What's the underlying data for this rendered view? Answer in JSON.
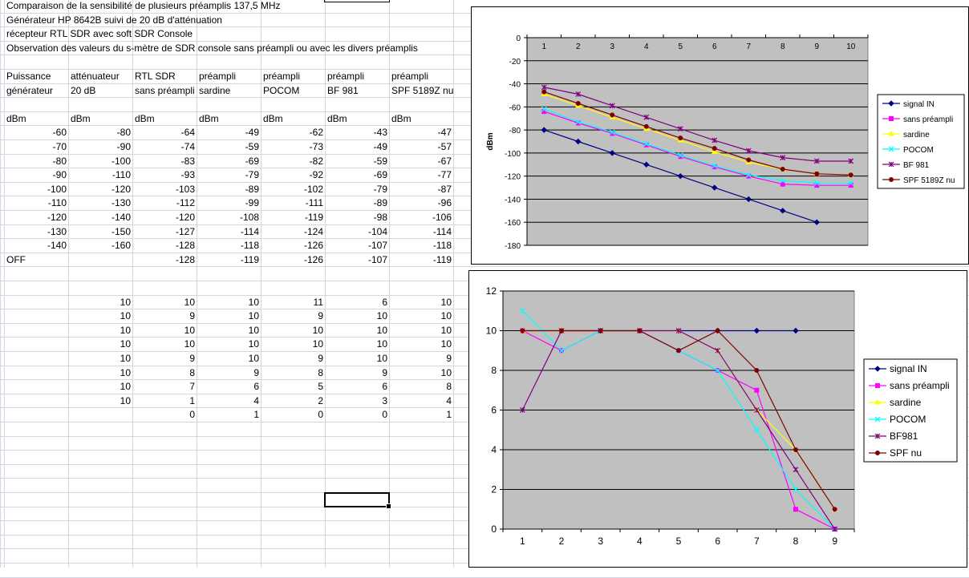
{
  "sheet": {
    "rows": [
      [
        {
          "c": 0,
          "t": "Comparaison de la sensibilité de plusieurs préamplis 137,5 MHz",
          "a": "o"
        }
      ],
      [
        {
          "c": 0,
          "t": "Générateur HP 8642B suivi de 20 dB d'atténuation",
          "a": "o"
        }
      ],
      [
        {
          "c": 0,
          "t": "récepteur RTL SDR avec soft SDR Console",
          "a": "o"
        }
      ],
      [
        {
          "c": 0,
          "t": "Observation des valeurs du s-mètre de SDR console sans préampli ou avec les divers préamplis",
          "a": "o"
        }
      ],
      [],
      [
        {
          "c": 0,
          "t": "Puissance"
        },
        {
          "c": 1,
          "t": "atténuateur"
        },
        {
          "c": 2,
          "t": "RTL SDR"
        },
        {
          "c": 3,
          "t": "préampli"
        },
        {
          "c": 4,
          "t": "préampli"
        },
        {
          "c": 5,
          "t": "préampli"
        },
        {
          "c": 6,
          "t": "préampli"
        }
      ],
      [
        {
          "c": 0,
          "t": "générateur"
        },
        {
          "c": 1,
          "t": "20 dB"
        },
        {
          "c": 2,
          "t": "sans préampli"
        },
        {
          "c": 3,
          "t": "sardine"
        },
        {
          "c": 4,
          "t": "POCOM"
        },
        {
          "c": 5,
          "t": "BF 981"
        },
        {
          "c": 6,
          "t": "SPF 5189Z nu"
        }
      ],
      [],
      [
        {
          "c": 0,
          "t": "dBm"
        },
        {
          "c": 1,
          "t": "dBm"
        },
        {
          "c": 2,
          "t": "dBm"
        },
        {
          "c": 3,
          "t": "dBm"
        },
        {
          "c": 4,
          "t": "dBm"
        },
        {
          "c": 5,
          "t": "dBm"
        },
        {
          "c": 6,
          "t": "dBm"
        }
      ],
      [
        {
          "c": 0,
          "t": "-60",
          "a": "r"
        },
        {
          "c": 1,
          "t": "-80",
          "a": "r"
        },
        {
          "c": 2,
          "t": "-64",
          "a": "r"
        },
        {
          "c": 3,
          "t": "-49",
          "a": "r"
        },
        {
          "c": 4,
          "t": "-62",
          "a": "r"
        },
        {
          "c": 5,
          "t": "-43",
          "a": "r"
        },
        {
          "c": 6,
          "t": "-47",
          "a": "r"
        }
      ],
      [
        {
          "c": 0,
          "t": "-70",
          "a": "r"
        },
        {
          "c": 1,
          "t": "-90",
          "a": "r"
        },
        {
          "c": 2,
          "t": "-74",
          "a": "r"
        },
        {
          "c": 3,
          "t": "-59",
          "a": "r"
        },
        {
          "c": 4,
          "t": "-73",
          "a": "r"
        },
        {
          "c": 5,
          "t": "-49",
          "a": "r"
        },
        {
          "c": 6,
          "t": "-57",
          "a": "r"
        }
      ],
      [
        {
          "c": 0,
          "t": "-80",
          "a": "r"
        },
        {
          "c": 1,
          "t": "-100",
          "a": "r"
        },
        {
          "c": 2,
          "t": "-83",
          "a": "r"
        },
        {
          "c": 3,
          "t": "-69",
          "a": "r"
        },
        {
          "c": 4,
          "t": "-82",
          "a": "r"
        },
        {
          "c": 5,
          "t": "-59",
          "a": "r"
        },
        {
          "c": 6,
          "t": "-67",
          "a": "r"
        }
      ],
      [
        {
          "c": 0,
          "t": "-90",
          "a": "r"
        },
        {
          "c": 1,
          "t": "-110",
          "a": "r"
        },
        {
          "c": 2,
          "t": "-93",
          "a": "r"
        },
        {
          "c": 3,
          "t": "-79",
          "a": "r"
        },
        {
          "c": 4,
          "t": "-92",
          "a": "r"
        },
        {
          "c": 5,
          "t": "-69",
          "a": "r"
        },
        {
          "c": 6,
          "t": "-77",
          "a": "r"
        }
      ],
      [
        {
          "c": 0,
          "t": "-100",
          "a": "r"
        },
        {
          "c": 1,
          "t": "-120",
          "a": "r"
        },
        {
          "c": 2,
          "t": "-103",
          "a": "r"
        },
        {
          "c": 3,
          "t": "-89",
          "a": "r"
        },
        {
          "c": 4,
          "t": "-102",
          "a": "r"
        },
        {
          "c": 5,
          "t": "-79",
          "a": "r"
        },
        {
          "c": 6,
          "t": "-87",
          "a": "r"
        }
      ],
      [
        {
          "c": 0,
          "t": "-110",
          "a": "r"
        },
        {
          "c": 1,
          "t": "-130",
          "a": "r"
        },
        {
          "c": 2,
          "t": "-112",
          "a": "r"
        },
        {
          "c": 3,
          "t": "-99",
          "a": "r"
        },
        {
          "c": 4,
          "t": "-111",
          "a": "r"
        },
        {
          "c": 5,
          "t": "-89",
          "a": "r"
        },
        {
          "c": 6,
          "t": "-96",
          "a": "r"
        }
      ],
      [
        {
          "c": 0,
          "t": "-120",
          "a": "r"
        },
        {
          "c": 1,
          "t": "-140",
          "a": "r"
        },
        {
          "c": 2,
          "t": "-120",
          "a": "r"
        },
        {
          "c": 3,
          "t": "-108",
          "a": "r"
        },
        {
          "c": 4,
          "t": "-119",
          "a": "r"
        },
        {
          "c": 5,
          "t": "-98",
          "a": "r"
        },
        {
          "c": 6,
          "t": "-106",
          "a": "r"
        }
      ],
      [
        {
          "c": 0,
          "t": "-130",
          "a": "r"
        },
        {
          "c": 1,
          "t": "-150",
          "a": "r"
        },
        {
          "c": 2,
          "t": "-127",
          "a": "r"
        },
        {
          "c": 3,
          "t": "-114",
          "a": "r"
        },
        {
          "c": 4,
          "t": "-124",
          "a": "r"
        },
        {
          "c": 5,
          "t": "-104",
          "a": "r"
        },
        {
          "c": 6,
          "t": "-114",
          "a": "r"
        }
      ],
      [
        {
          "c": 0,
          "t": "-140",
          "a": "r"
        },
        {
          "c": 1,
          "t": "-160",
          "a": "r"
        },
        {
          "c": 2,
          "t": "-128",
          "a": "r"
        },
        {
          "c": 3,
          "t": "-118",
          "a": "r"
        },
        {
          "c": 4,
          "t": "-126",
          "a": "r"
        },
        {
          "c": 5,
          "t": "-107",
          "a": "r"
        },
        {
          "c": 6,
          "t": "-118",
          "a": "r"
        }
      ],
      [
        {
          "c": 0,
          "t": "OFF"
        },
        {
          "c": 2,
          "t": "-128",
          "a": "r"
        },
        {
          "c": 3,
          "t": "-119",
          "a": "r"
        },
        {
          "c": 4,
          "t": "-126",
          "a": "r"
        },
        {
          "c": 5,
          "t": "-107",
          "a": "r"
        },
        {
          "c": 6,
          "t": "-119",
          "a": "r"
        }
      ],
      [],
      [],
      [
        {
          "c": 1,
          "t": "10",
          "a": "r"
        },
        {
          "c": 2,
          "t": "10",
          "a": "r"
        },
        {
          "c": 3,
          "t": "10",
          "a": "r"
        },
        {
          "c": 4,
          "t": "11",
          "a": "r"
        },
        {
          "c": 5,
          "t": "6",
          "a": "r"
        },
        {
          "c": 6,
          "t": "10",
          "a": "r"
        }
      ],
      [
        {
          "c": 1,
          "t": "10",
          "a": "r"
        },
        {
          "c": 2,
          "t": "9",
          "a": "r"
        },
        {
          "c": 3,
          "t": "10",
          "a": "r"
        },
        {
          "c": 4,
          "t": "9",
          "a": "r"
        },
        {
          "c": 5,
          "t": "10",
          "a": "r"
        },
        {
          "c": 6,
          "t": "10",
          "a": "r"
        }
      ],
      [
        {
          "c": 1,
          "t": "10",
          "a": "r"
        },
        {
          "c": 2,
          "t": "10",
          "a": "r"
        },
        {
          "c": 3,
          "t": "10",
          "a": "r"
        },
        {
          "c": 4,
          "t": "10",
          "a": "r"
        },
        {
          "c": 5,
          "t": "10",
          "a": "r"
        },
        {
          "c": 6,
          "t": "10",
          "a": "r"
        }
      ],
      [
        {
          "c": 1,
          "t": "10",
          "a": "r"
        },
        {
          "c": 2,
          "t": "10",
          "a": "r"
        },
        {
          "c": 3,
          "t": "10",
          "a": "r"
        },
        {
          "c": 4,
          "t": "10",
          "a": "r"
        },
        {
          "c": 5,
          "t": "10",
          "a": "r"
        },
        {
          "c": 6,
          "t": "10",
          "a": "r"
        }
      ],
      [
        {
          "c": 1,
          "t": "10",
          "a": "r"
        },
        {
          "c": 2,
          "t": "9",
          "a": "r"
        },
        {
          "c": 3,
          "t": "10",
          "a": "r"
        },
        {
          "c": 4,
          "t": "9",
          "a": "r"
        },
        {
          "c": 5,
          "t": "10",
          "a": "r"
        },
        {
          "c": 6,
          "t": "9",
          "a": "r"
        }
      ],
      [
        {
          "c": 1,
          "t": "10",
          "a": "r"
        },
        {
          "c": 2,
          "t": "8",
          "a": "r"
        },
        {
          "c": 3,
          "t": "9",
          "a": "r"
        },
        {
          "c": 4,
          "t": "8",
          "a": "r"
        },
        {
          "c": 5,
          "t": "9",
          "a": "r"
        },
        {
          "c": 6,
          "t": "10",
          "a": "r"
        }
      ],
      [
        {
          "c": 1,
          "t": "10",
          "a": "r"
        },
        {
          "c": 2,
          "t": "7",
          "a": "r"
        },
        {
          "c": 3,
          "t": "6",
          "a": "r"
        },
        {
          "c": 4,
          "t": "5",
          "a": "r"
        },
        {
          "c": 5,
          "t": "6",
          "a": "r"
        },
        {
          "c": 6,
          "t": "8",
          "a": "r"
        }
      ],
      [
        {
          "c": 1,
          "t": "10",
          "a": "r"
        },
        {
          "c": 2,
          "t": "1",
          "a": "r"
        },
        {
          "c": 3,
          "t": "4",
          "a": "r"
        },
        {
          "c": 4,
          "t": "2",
          "a": "r"
        },
        {
          "c": 5,
          "t": "3",
          "a": "r"
        },
        {
          "c": 6,
          "t": "4",
          "a": "r"
        }
      ],
      [
        {
          "c": 2,
          "t": "0",
          "a": "r"
        },
        {
          "c": 3,
          "t": "1",
          "a": "r"
        },
        {
          "c": 4,
          "t": "0",
          "a": "r"
        },
        {
          "c": 5,
          "t": "0",
          "a": "r"
        },
        {
          "c": 6,
          "t": "1",
          "a": "r"
        }
      ]
    ]
  },
  "chart_data": [
    {
      "type": "line",
      "title": "",
      "xlabel": "",
      "ylabel": "dBm",
      "x": [
        1,
        2,
        3,
        4,
        5,
        6,
        7,
        8,
        9,
        10
      ],
      "ylim": [
        -180,
        0
      ],
      "yticks": [
        0,
        -20,
        -40,
        -60,
        -80,
        -100,
        -120,
        -140,
        -160,
        -180
      ],
      "x_axis_position": "top",
      "grid": true,
      "plot_background": "#c0c0c0",
      "legend_position": "right",
      "series": [
        {
          "name": "signal IN",
          "color": "#000080",
          "marker": "diamond",
          "values": [
            -80,
            -90,
            -100,
            -110,
            -120,
            -130,
            -140,
            -150,
            -160,
            null
          ]
        },
        {
          "name": "sans préampli",
          "color": "#ff00ff",
          "marker": "square",
          "values": [
            -64,
            -74,
            -83,
            -93,
            -103,
            -112,
            -120,
            -127,
            -128,
            -128
          ]
        },
        {
          "name": "sardine",
          "color": "#ffff00",
          "marker": "triangle",
          "values": [
            -49,
            -59,
            -69,
            -79,
            -89,
            -99,
            -108,
            -114,
            -118,
            -119
          ]
        },
        {
          "name": "POCOM",
          "color": "#00ffff",
          "marker": "x",
          "values": [
            -62,
            -73,
            -82,
            -92,
            -102,
            -111,
            -119,
            -124,
            -126,
            -126
          ]
        },
        {
          "name": "BF 981",
          "color": "#800080",
          "marker": "star",
          "values": [
            -43,
            -49,
            -59,
            -69,
            -79,
            -89,
            -98,
            -104,
            -107,
            -107
          ]
        },
        {
          "name": "SPF 5189Z nu",
          "color": "#800000",
          "marker": "circle",
          "values": [
            -47,
            -57,
            -67,
            -77,
            -87,
            -96,
            -106,
            -114,
            -118,
            -119
          ]
        }
      ]
    },
    {
      "type": "line",
      "title": "",
      "xlabel": "",
      "ylabel": "",
      "x": [
        1,
        2,
        3,
        4,
        5,
        6,
        7,
        8,
        9
      ],
      "ylim": [
        0,
        12
      ],
      "yticks": [
        0,
        2,
        4,
        6,
        8,
        10,
        12
      ],
      "grid": true,
      "plot_background": "#c0c0c0",
      "legend_position": "right",
      "series": [
        {
          "name": "signal IN",
          "color": "#000080",
          "marker": "diamond",
          "values": [
            10,
            10,
            10,
            10,
            10,
            10,
            10,
            10,
            null
          ]
        },
        {
          "name": "sans préampli",
          "color": "#ff00ff",
          "marker": "square",
          "values": [
            10,
            9,
            10,
            10,
            9,
            8,
            7,
            1,
            0
          ]
        },
        {
          "name": "sardine",
          "color": "#ffff00",
          "marker": "triangle",
          "values": [
            10,
            10,
            10,
            10,
            10,
            9,
            6,
            4,
            1
          ]
        },
        {
          "name": "POCOM",
          "color": "#00ffff",
          "marker": "x",
          "values": [
            11,
            9,
            10,
            10,
            9,
            8,
            5,
            2,
            0
          ]
        },
        {
          "name": "BF981",
          "color": "#800080",
          "marker": "star",
          "values": [
            6,
            10,
            10,
            10,
            10,
            9,
            6,
            3,
            0
          ]
        },
        {
          "name": "SPF nu",
          "color": "#800000",
          "marker": "circle",
          "values": [
            10,
            10,
            10,
            10,
            9,
            10,
            8,
            4,
            1
          ]
        }
      ]
    }
  ]
}
